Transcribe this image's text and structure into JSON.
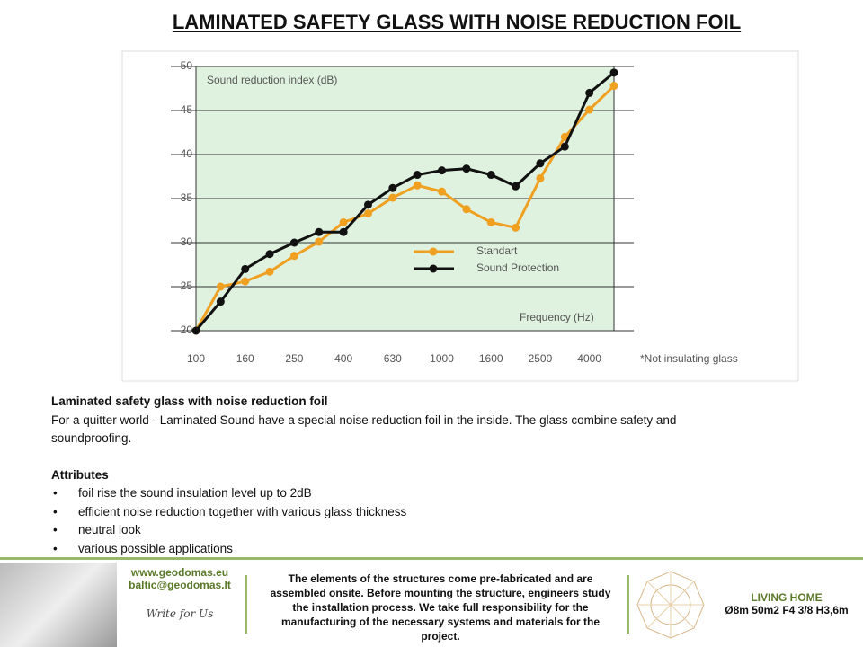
{
  "header": {
    "title": "LAMINATED SAFETY GLASS WITH NOISE REDUCTION FOIL"
  },
  "chart_data": {
    "type": "line",
    "ylabel": "Sound reduction index (dB)",
    "xlabel": "Frequency (Hz)",
    "note": "*Not insulating glass",
    "categories": [
      "100",
      null,
      "160",
      null,
      "250",
      null,
      "400",
      null,
      "630",
      null,
      "1000",
      null,
      "1600",
      null,
      "2500",
      null,
      "4000",
      null
    ],
    "ylim": [
      20,
      50
    ],
    "yticks": [
      20,
      25,
      30,
      35,
      40,
      45,
      50
    ],
    "grid": true,
    "series": [
      {
        "name": "Standart",
        "color": "#f0a020",
        "values": [
          20,
          25,
          25.6,
          26.7,
          28.5,
          30.1,
          32.3,
          33.3,
          35.1,
          36.5,
          35.8,
          33.8,
          32.3,
          31.7,
          37.3,
          42,
          45.1,
          47.8
        ]
      },
      {
        "name": "Sound Protection",
        "color": "#111111",
        "values": [
          20,
          23.3,
          27,
          28.7,
          30,
          31.2,
          31.2,
          34.3,
          36.2,
          37.7,
          38.2,
          38.4,
          37.7,
          36.4,
          39,
          40.9,
          47,
          49.3
        ]
      }
    ]
  },
  "body": {
    "heading": "Laminated safety glass with noise reduction foil",
    "intro": "For a quitter world - Laminated  Sound have a special noise reduction foil in the inside. The glass combine safety and soundproofing.",
    "attributes_title": "Attributes",
    "attributes": [
      "foil rise the sound insulation level up to 2dB",
      "efficient noise reduction together with various glass thickness",
      "neutral look",
      "various possible applications"
    ]
  },
  "footer": {
    "web": "www.geodomas.eu",
    "email": "baltic@geodomas.lt",
    "signature": "Write for Us",
    "statement": "The elements of the structures come pre-fabricated and are assembled onsite. Before mounting the structure, engineers study the installation process. We take full responsibility for the manufacturing of the necessary systems and materials for the project.",
    "product_name": "LIVING HOME",
    "product_spec": "Ø8m 50m2 F4 3/8 H3,6m"
  }
}
